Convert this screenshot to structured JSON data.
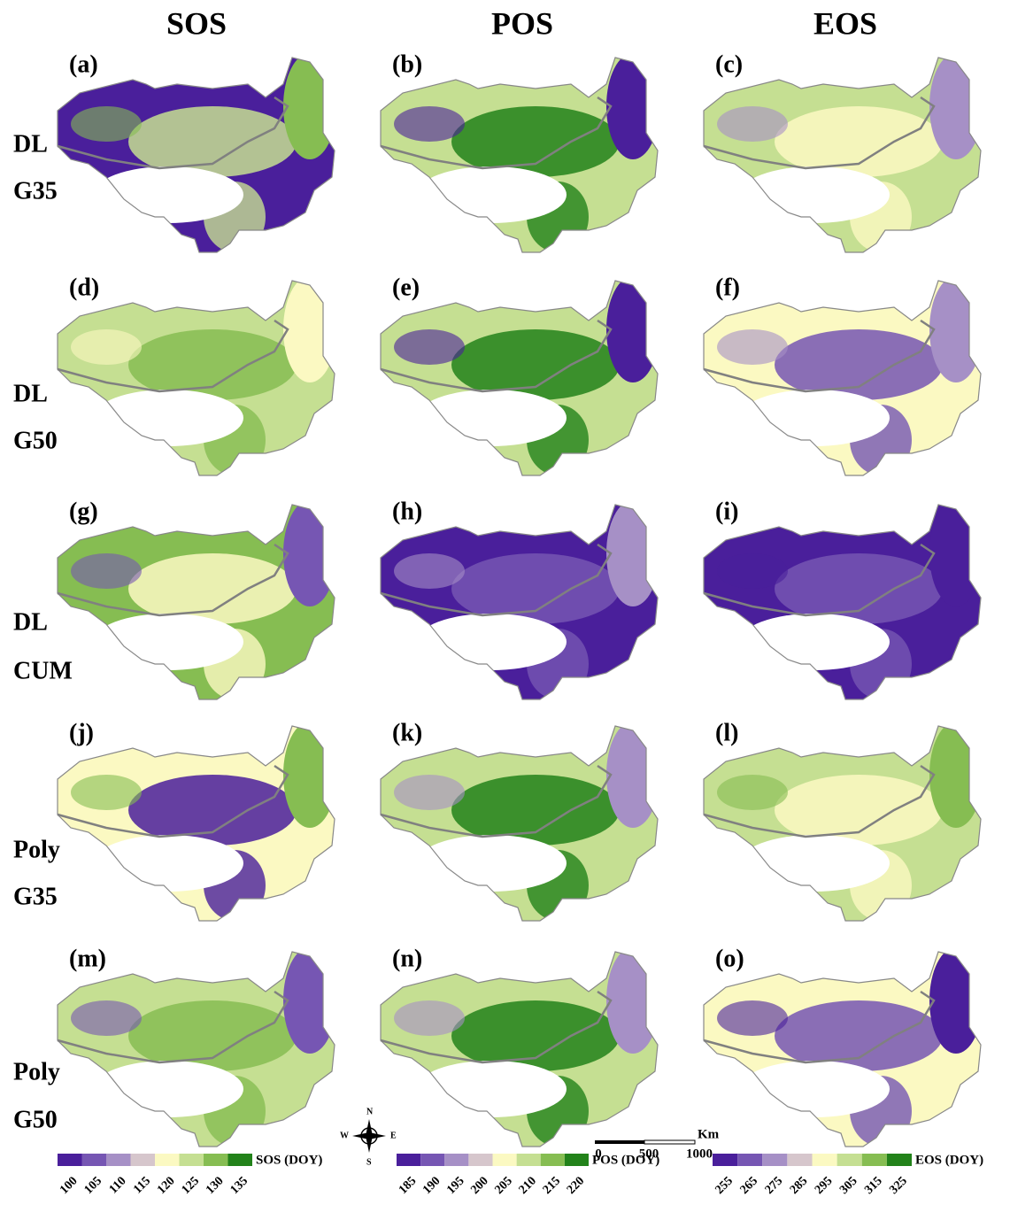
{
  "columns": [
    "SOS",
    "POS",
    "EOS"
  ],
  "rows": [
    {
      "method": "DL",
      "threshold": "G35",
      "panels": [
        "(a)",
        "(b)",
        "(c)"
      ]
    },
    {
      "method": "DL",
      "threshold": "G50",
      "panels": [
        "(d)",
        "(e)",
        "(f)"
      ]
    },
    {
      "method": "DL",
      "threshold": "CUM",
      "panels": [
        "(g)",
        "(h)",
        "(i)"
      ]
    },
    {
      "method": "Poly",
      "threshold": "G35",
      "panels": [
        "(j)",
        "(k)",
        "(l)"
      ]
    },
    {
      "method": "Poly",
      "threshold": "G50",
      "panels": [
        "(m)",
        "(n)",
        "(o)"
      ]
    }
  ],
  "palette": [
    "#4a1f9b",
    "#7656b3",
    "#a690c6",
    "#d6c6cc",
    "#fbf9c2",
    "#c5df92",
    "#86bd52",
    "#22821a"
  ],
  "legends": [
    {
      "title": "SOS (DOY)",
      "ticks": [
        100,
        105,
        110,
        115,
        120,
        125,
        130,
        135
      ]
    },
    {
      "title": "POS (DOY)",
      "ticks": [
        185,
        190,
        195,
        200,
        205,
        210,
        215,
        220
      ]
    },
    {
      "title": "EOS (DOY)",
      "ticks": [
        255,
        265,
        275,
        285,
        295,
        305,
        315,
        325
      ]
    }
  ],
  "scale_bar": {
    "unit": "Km",
    "ticks": [
      0,
      500,
      1000
    ]
  },
  "compass": {
    "north": "N",
    "south": "S",
    "east": "E",
    "west": "W"
  }
}
